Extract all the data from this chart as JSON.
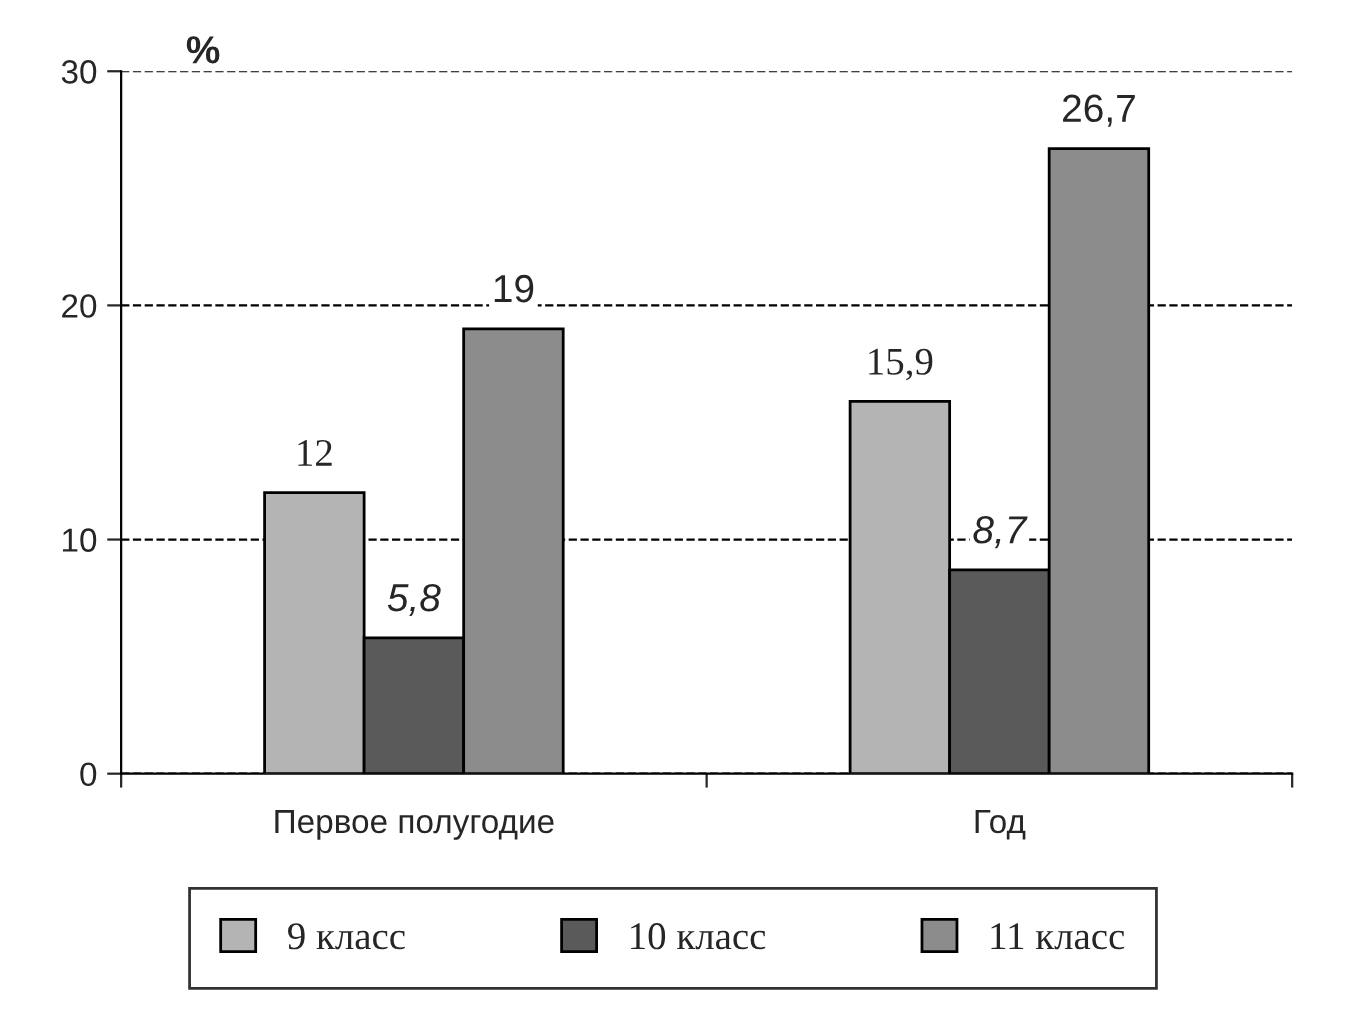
{
  "chart_data": {
    "type": "bar",
    "ylabel": "%",
    "categories": [
      "Первое полугодие",
      "Год"
    ],
    "series": [
      {
        "name": "9 класс",
        "color": "#b4b4b4",
        "values": [
          12,
          15.9
        ]
      },
      {
        "name": "10 класс",
        "color": "#5a5a5a",
        "values": [
          5.8,
          8.7
        ]
      },
      {
        "name": "11 класс",
        "color": "#8c8c8c",
        "values": [
          19,
          26.7
        ]
      }
    ],
    "value_labels": [
      [
        "12",
        "15,9"
      ],
      [
        "5,8",
        "8,7"
      ],
      [
        "19",
        "26,7"
      ]
    ],
    "ylim": [
      0,
      30
    ],
    "yticks": [
      0,
      10,
      20,
      30
    ],
    "grid": "y",
    "legend": "bottom"
  }
}
